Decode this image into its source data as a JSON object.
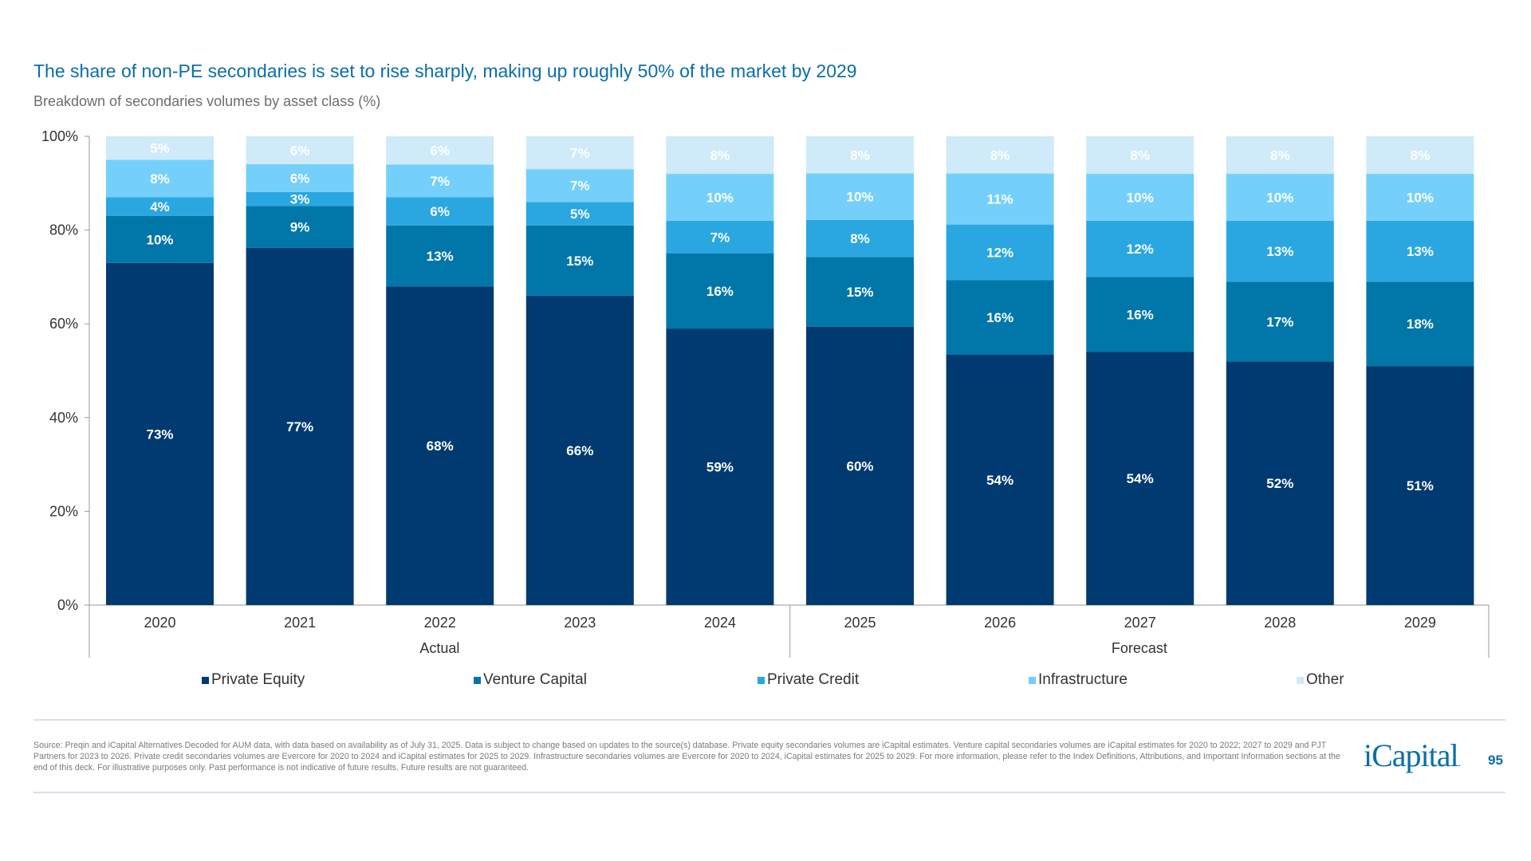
{
  "header": {
    "title": "The share of non-PE secondaries is set to rise sharply, making up roughly 50% of the market by 2029",
    "subtitle": "Breakdown of secondaries volumes by asset class (%)"
  },
  "chart_data": {
    "type": "bar",
    "stacked": true,
    "categories": [
      "2020",
      "2021",
      "2022",
      "2023",
      "2024",
      "2025",
      "2026",
      "2027",
      "2028",
      "2029"
    ],
    "groups": [
      {
        "label": "Actual",
        "categories": [
          "2020",
          "2021",
          "2022",
          "2023",
          "2024"
        ]
      },
      {
        "label": "Forecast",
        "categories": [
          "2025",
          "2026",
          "2027",
          "2028",
          "2029"
        ]
      }
    ],
    "series": [
      {
        "name": "Private Equity",
        "color": "#003a70",
        "values": [
          73,
          77,
          68,
          66,
          59,
          60,
          54,
          54,
          52,
          51
        ]
      },
      {
        "name": "Venture Capital",
        "color": "#0077a8",
        "values": [
          10,
          9,
          13,
          15,
          16,
          15,
          16,
          16,
          17,
          18
        ]
      },
      {
        "name": "Private Credit",
        "color": "#2aa7e0",
        "values": [
          4,
          3,
          6,
          5,
          7,
          8,
          12,
          12,
          13,
          13
        ]
      },
      {
        "name": "Infrastructure",
        "color": "#74d0fa",
        "values": [
          8,
          6,
          7,
          7,
          10,
          10,
          11,
          10,
          10,
          10
        ]
      },
      {
        "name": "Other",
        "color": "#cfeaf8",
        "values": [
          5,
          6,
          6,
          7,
          8,
          8,
          8,
          8,
          8,
          8
        ]
      }
    ],
    "yticks": [
      "0%",
      "20%",
      "40%",
      "60%",
      "80%",
      "100%"
    ],
    "ylim": [
      0,
      100
    ],
    "legend_position": "bottom",
    "grid": false
  },
  "footer": {
    "source": "Source: Preqin and iCapital Alternatives Decoded for AUM data, with data based on availability as of July 31, 2025. Data is subject to change based on updates to the source(s) database. Private equity secondaries volumes are iCapital estimates. Venture capital secondaries volumes are iCapital estimates for 2020 to 2022; 2027 to 2029 and PJT Partners for 2023 to 2026. Private credit secondaries volumes are Evercore for 2020 to 2024 and iCapital estimates for 2025 to 2029. Infrastructure secondaries volumes are Evercore for 2020 to 2024, iCapital estimates for 2025 to 2029. For more information, please refer to the Index Definitions, Attributions, and Important Information sections at the end of this deck. For illustrative purposes only. Past performance is not indicative of future results. Future results are not guaranteed.",
    "logo": "iCapital.",
    "page": "95"
  }
}
